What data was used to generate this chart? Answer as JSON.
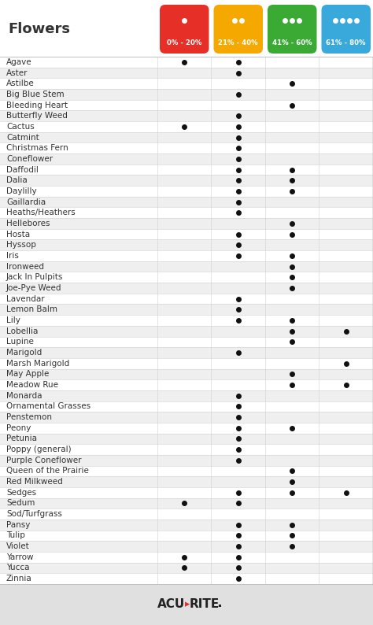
{
  "title": "Flowers",
  "col_labels": [
    "0% - 20%",
    "21% - 40%",
    "41% - 60%",
    "61% - 80%"
  ],
  "col_colors": [
    "#e63027",
    "#f5a800",
    "#3aaa35",
    "#39a9dc"
  ],
  "flowers": [
    "Agave",
    "Aster",
    "Astilbe",
    "Big Blue Stem",
    "Bleeding Heart",
    "Butterfly Weed",
    "Cactus",
    "Catmint",
    "Christmas Fern",
    "Coneflower",
    "Daffodil",
    "Dalia",
    "Daylilly",
    "Gaillardia",
    "Heaths/Heathers",
    "Hellebores",
    "Hosta",
    "Hyssop",
    "Iris",
    "Ironweed",
    "Jack In Pulpits",
    "Joe-Pye Weed",
    "Lavendar",
    "Lemon Balm",
    "Lily",
    "Lobellia",
    "Lupine",
    "Marigold",
    "Marsh Marigold",
    "May Apple",
    "Meadow Rue",
    "Monarda",
    "Ornamental Grasses",
    "Penstemon",
    "Peony",
    "Petunia",
    "Poppy (general)",
    "Purple Coneflower",
    "Queen of the Prairie",
    "Red Milkweed",
    "Sedges",
    "Sedum",
    "Sod/Turfgrass",
    "Pansy",
    "Tulip",
    "Violet",
    "Yarrow",
    "Yucca",
    "Zinnia"
  ],
  "dots": {
    "Agave": [
      1,
      1,
      0,
      0
    ],
    "Aster": [
      0,
      1,
      0,
      0
    ],
    "Astilbe": [
      0,
      0,
      1,
      0
    ],
    "Big Blue Stem": [
      0,
      1,
      0,
      0
    ],
    "Bleeding Heart": [
      0,
      0,
      1,
      0
    ],
    "Butterfly Weed": [
      0,
      1,
      0,
      0
    ],
    "Cactus": [
      1,
      1,
      0,
      0
    ],
    "Catmint": [
      0,
      1,
      0,
      0
    ],
    "Christmas Fern": [
      0,
      1,
      0,
      0
    ],
    "Coneflower": [
      0,
      1,
      0,
      0
    ],
    "Daffodil": [
      0,
      1,
      1,
      0
    ],
    "Dalia": [
      0,
      1,
      1,
      0
    ],
    "Daylilly": [
      0,
      1,
      1,
      0
    ],
    "Gaillardia": [
      0,
      1,
      0,
      0
    ],
    "Heaths/Heathers": [
      0,
      1,
      0,
      0
    ],
    "Hellebores": [
      0,
      0,
      1,
      0
    ],
    "Hosta": [
      0,
      1,
      1,
      0
    ],
    "Hyssop": [
      0,
      1,
      0,
      0
    ],
    "Iris": [
      0,
      1,
      1,
      0
    ],
    "Ironweed": [
      0,
      0,
      1,
      0
    ],
    "Jack In Pulpits": [
      0,
      0,
      1,
      0
    ],
    "Joe-Pye Weed": [
      0,
      0,
      1,
      0
    ],
    "Lavendar": [
      0,
      1,
      0,
      0
    ],
    "Lemon Balm": [
      0,
      1,
      0,
      0
    ],
    "Lily": [
      0,
      1,
      1,
      0
    ],
    "Lobellia": [
      0,
      0,
      1,
      1
    ],
    "Lupine": [
      0,
      0,
      1,
      0
    ],
    "Marigold": [
      0,
      1,
      0,
      0
    ],
    "Marsh Marigold": [
      0,
      0,
      0,
      1
    ],
    "May Apple": [
      0,
      0,
      1,
      0
    ],
    "Meadow Rue": [
      0,
      0,
      1,
      1
    ],
    "Monarda": [
      0,
      1,
      0,
      0
    ],
    "Ornamental Grasses": [
      0,
      1,
      0,
      0
    ],
    "Penstemon": [
      0,
      1,
      0,
      0
    ],
    "Peony": [
      0,
      1,
      1,
      0
    ],
    "Petunia": [
      0,
      1,
      0,
      0
    ],
    "Poppy (general)": [
      0,
      1,
      0,
      0
    ],
    "Purple Coneflower": [
      0,
      1,
      0,
      0
    ],
    "Queen of the Prairie": [
      0,
      0,
      1,
      0
    ],
    "Red Milkweed": [
      0,
      0,
      1,
      0
    ],
    "Sedges": [
      0,
      1,
      1,
      1
    ],
    "Sedum": [
      1,
      1,
      0,
      0
    ],
    "Sod/Turfgrass": [
      0,
      0,
      0,
      0
    ],
    "Pansy": [
      0,
      1,
      1,
      0
    ],
    "Tulip": [
      0,
      1,
      1,
      0
    ],
    "Violet": [
      0,
      1,
      1,
      0
    ],
    "Yarrow": [
      1,
      1,
      0,
      0
    ],
    "Yucca": [
      1,
      1,
      0,
      0
    ],
    "Zinnia": [
      0,
      1,
      0,
      0
    ]
  },
  "bg_color": "#ffffff",
  "row_alt_color": "#efefef",
  "row_color": "#ffffff",
  "dot_color": "#111111",
  "font_color": "#333333",
  "footer_bg": "#e0e0e0",
  "acurite_color": "#222222",
  "acurite_dot_color": "#e63027",
  "header_bg": "#ffffff"
}
